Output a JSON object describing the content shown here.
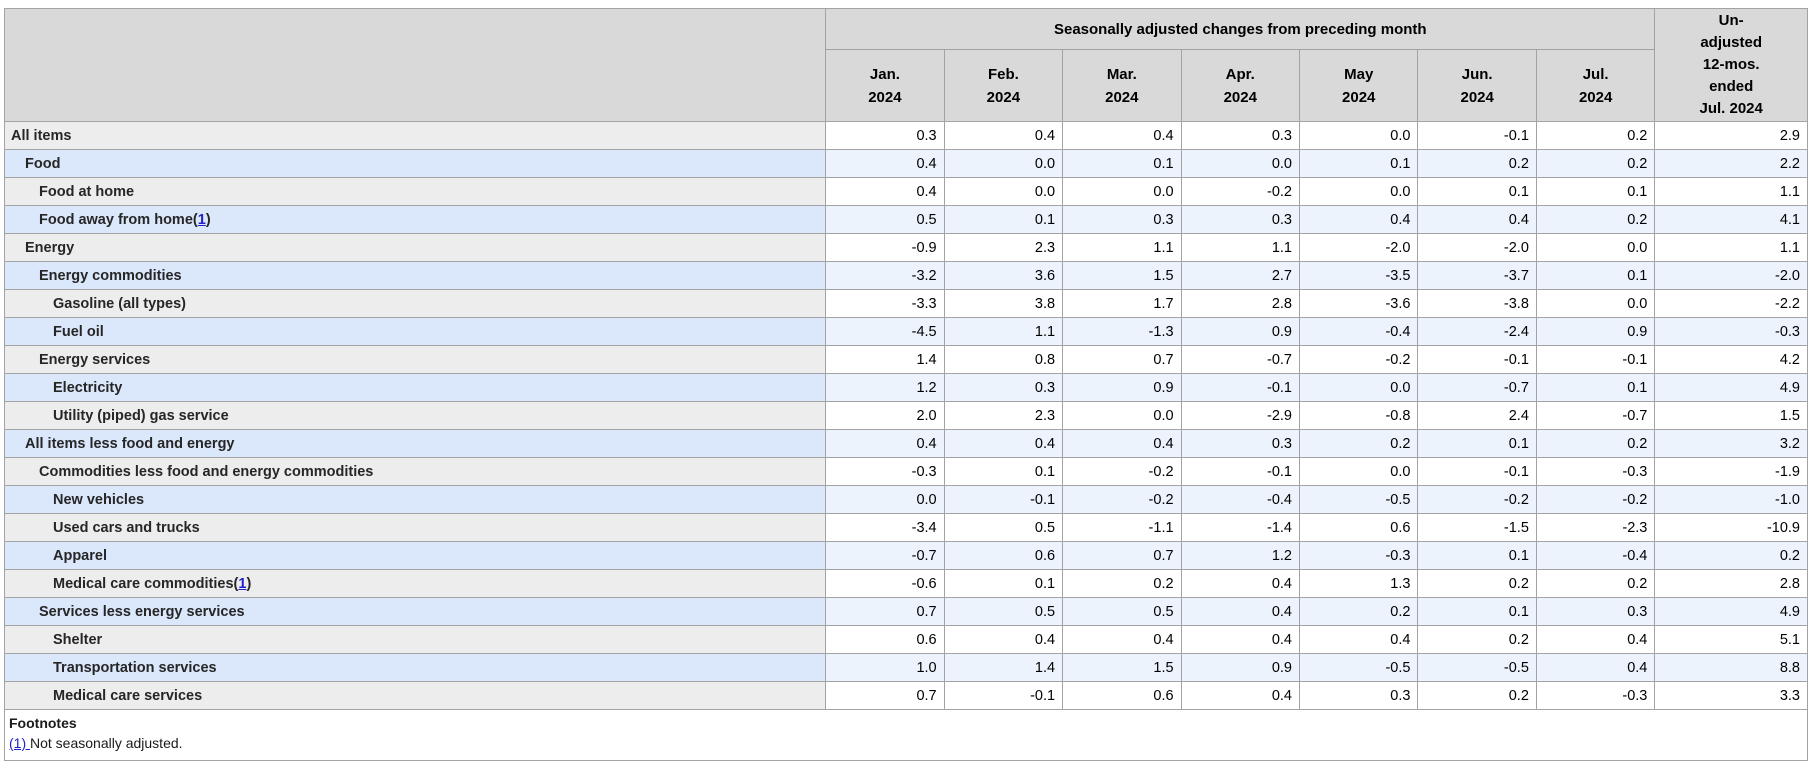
{
  "table": {
    "column_group_header": "Seasonally adjusted changes from preceding month",
    "unadjusted_header_lines": [
      "Un-",
      "adjusted",
      "12-mos.",
      "ended",
      "Jul. 2024"
    ],
    "month_headers": [
      [
        "Jan.",
        "2024"
      ],
      [
        "Feb.",
        "2024"
      ],
      [
        "Mar.",
        "2024"
      ],
      [
        "Apr.",
        "2024"
      ],
      [
        "May",
        "2024"
      ],
      [
        "Jun.",
        "2024"
      ],
      [
        "Jul.",
        "2024"
      ]
    ],
    "rows": [
      {
        "label": "All items",
        "indent": 0,
        "footnote_ref": null,
        "values": [
          "0.3",
          "0.4",
          "0.4",
          "0.3",
          "0.0",
          "-0.1",
          "0.2",
          "2.9"
        ]
      },
      {
        "label": "Food",
        "indent": 1,
        "footnote_ref": null,
        "values": [
          "0.4",
          "0.0",
          "0.1",
          "0.0",
          "0.1",
          "0.2",
          "0.2",
          "2.2"
        ]
      },
      {
        "label": "Food at home",
        "indent": 2,
        "footnote_ref": null,
        "values": [
          "0.4",
          "0.0",
          "0.0",
          "-0.2",
          "0.0",
          "0.1",
          "0.1",
          "1.1"
        ]
      },
      {
        "label": "Food away from home",
        "indent": 2,
        "footnote_ref": "1",
        "values": [
          "0.5",
          "0.1",
          "0.3",
          "0.3",
          "0.4",
          "0.4",
          "0.2",
          "4.1"
        ]
      },
      {
        "label": "Energy",
        "indent": 1,
        "footnote_ref": null,
        "values": [
          "-0.9",
          "2.3",
          "1.1",
          "1.1",
          "-2.0",
          "-2.0",
          "0.0",
          "1.1"
        ]
      },
      {
        "label": "Energy commodities",
        "indent": 2,
        "footnote_ref": null,
        "values": [
          "-3.2",
          "3.6",
          "1.5",
          "2.7",
          "-3.5",
          "-3.7",
          "0.1",
          "-2.0"
        ]
      },
      {
        "label": "Gasoline (all types)",
        "indent": 3,
        "footnote_ref": null,
        "values": [
          "-3.3",
          "3.8",
          "1.7",
          "2.8",
          "-3.6",
          "-3.8",
          "0.0",
          "-2.2"
        ]
      },
      {
        "label": "Fuel oil",
        "indent": 3,
        "footnote_ref": null,
        "values": [
          "-4.5",
          "1.1",
          "-1.3",
          "0.9",
          "-0.4",
          "-2.4",
          "0.9",
          "-0.3"
        ]
      },
      {
        "label": "Energy services",
        "indent": 2,
        "footnote_ref": null,
        "values": [
          "1.4",
          "0.8",
          "0.7",
          "-0.7",
          "-0.2",
          "-0.1",
          "-0.1",
          "4.2"
        ]
      },
      {
        "label": "Electricity",
        "indent": 3,
        "footnote_ref": null,
        "values": [
          "1.2",
          "0.3",
          "0.9",
          "-0.1",
          "0.0",
          "-0.7",
          "0.1",
          "4.9"
        ]
      },
      {
        "label": "Utility (piped) gas service",
        "indent": 3,
        "footnote_ref": null,
        "values": [
          "2.0",
          "2.3",
          "0.0",
          "-2.9",
          "-0.8",
          "2.4",
          "-0.7",
          "1.5"
        ]
      },
      {
        "label": "All items less food and energy",
        "indent": 1,
        "footnote_ref": null,
        "values": [
          "0.4",
          "0.4",
          "0.4",
          "0.3",
          "0.2",
          "0.1",
          "0.2",
          "3.2"
        ]
      },
      {
        "label": "Commodities less food and energy commodities",
        "indent": 2,
        "footnote_ref": null,
        "values": [
          "-0.3",
          "0.1",
          "-0.2",
          "-0.1",
          "0.0",
          "-0.1",
          "-0.3",
          "-1.9"
        ]
      },
      {
        "label": "New vehicles",
        "indent": 3,
        "footnote_ref": null,
        "values": [
          "0.0",
          "-0.1",
          "-0.2",
          "-0.4",
          "-0.5",
          "-0.2",
          "-0.2",
          "-1.0"
        ]
      },
      {
        "label": "Used cars and trucks",
        "indent": 3,
        "footnote_ref": null,
        "values": [
          "-3.4",
          "0.5",
          "-1.1",
          "-1.4",
          "0.6",
          "-1.5",
          "-2.3",
          "-10.9"
        ]
      },
      {
        "label": "Apparel",
        "indent": 3,
        "footnote_ref": null,
        "values": [
          "-0.7",
          "0.6",
          "0.7",
          "1.2",
          "-0.3",
          "0.1",
          "-0.4",
          "0.2"
        ]
      },
      {
        "label": "Medical care commodities",
        "indent": 3,
        "footnote_ref": "1",
        "values": [
          "-0.6",
          "0.1",
          "0.2",
          "0.4",
          "1.3",
          "0.2",
          "0.2",
          "2.8"
        ]
      },
      {
        "label": "Services less energy services",
        "indent": 2,
        "footnote_ref": null,
        "values": [
          "0.7",
          "0.5",
          "0.5",
          "0.4",
          "0.2",
          "0.1",
          "0.3",
          "4.9"
        ]
      },
      {
        "label": "Shelter",
        "indent": 3,
        "footnote_ref": null,
        "values": [
          "0.6",
          "0.4",
          "0.4",
          "0.4",
          "0.4",
          "0.2",
          "0.4",
          "5.1"
        ]
      },
      {
        "label": "Transportation services",
        "indent": 3,
        "footnote_ref": null,
        "values": [
          "1.0",
          "1.4",
          "1.5",
          "0.9",
          "-0.5",
          "-0.5",
          "0.4",
          "8.8"
        ]
      },
      {
        "label": "Medical care services",
        "indent": 3,
        "footnote_ref": null,
        "values": [
          "0.7",
          "-0.1",
          "0.6",
          "0.4",
          "0.3",
          "0.2",
          "-0.3",
          "3.3"
        ]
      }
    ],
    "footnotes": {
      "heading": "Footnotes",
      "items": [
        {
          "ref": "(1)",
          "text": "Not seasonally adjusted."
        }
      ]
    }
  },
  "colors": {
    "header_bg": "#d9d9d9",
    "row_label_gray": "#ededed",
    "row_label_blue": "#dbe8fb",
    "row_data_blue": "#edf3fc",
    "row_data_white": "#ffffff",
    "border": "#a3a3a3",
    "link": "#2222cc"
  }
}
